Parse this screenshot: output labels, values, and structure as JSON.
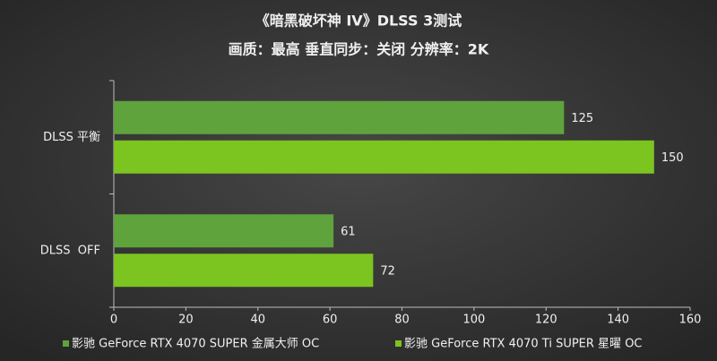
{
  "chart_data": {
    "type": "hbar",
    "title": "《暗黑破坏神 IV》DLSS 3测试",
    "subtitle": "画质：最高 垂直同步：关闭 分辨率：2K",
    "categories": [
      "DLSS 平衡",
      "DLSS  OFF"
    ],
    "series": [
      {
        "name": "影驰 GeForce RTX 4070 SUPER 金属大师 OC",
        "color": "#5fa33c",
        "values": [
          125,
          61
        ]
      },
      {
        "name": "影驰 GeForce RTX 4070 Ti SUPER 星曜 OC",
        "color": "#7cc41f",
        "values": [
          150,
          72
        ]
      }
    ],
    "xlim": [
      0,
      160
    ],
    "xticks": [
      0,
      20,
      40,
      60,
      80,
      100,
      120,
      140,
      160
    ],
    "grid": false
  }
}
